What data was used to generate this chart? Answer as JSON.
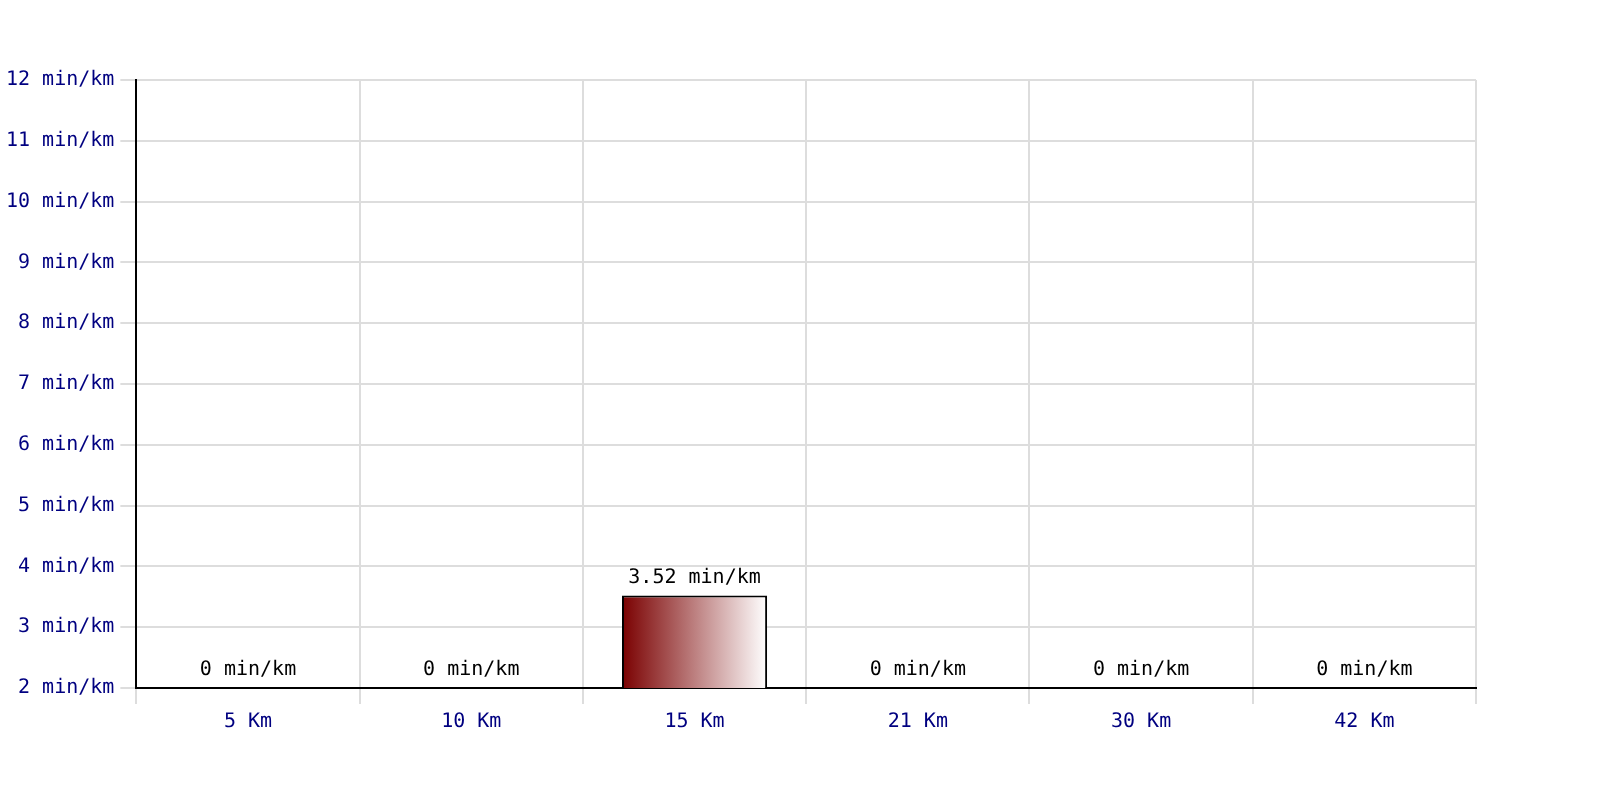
{
  "chart_data": {
    "type": "bar",
    "categories": [
      "5 Km",
      "10 Km",
      "15 Km",
      "21 Km",
      "30 Km",
      "42 Km"
    ],
    "values": [
      null,
      null,
      3.52,
      null,
      null,
      null
    ],
    "value_labels": [
      "0 min/km",
      "0 min/km",
      "3.52 min/km",
      "0 min/km",
      "0 min/km",
      "0 min/km"
    ],
    "color": "#7a0000",
    "ylim": [
      2,
      12
    ],
    "yticks": [
      {
        "value": 2,
        "label": "2 min/km"
      },
      {
        "value": 3,
        "label": "3 min/km"
      },
      {
        "value": 4,
        "label": "4 min/km"
      },
      {
        "value": 5,
        "label": "5 min/km"
      },
      {
        "value": 6,
        "label": "6 min/km"
      },
      {
        "value": 7,
        "label": "7 min/km"
      },
      {
        "value": 8,
        "label": "8 min/km"
      },
      {
        "value": 9,
        "label": "9 min/km"
      },
      {
        "value": 10,
        "label": "10 min/km"
      },
      {
        "value": 11,
        "label": "11 min/km"
      },
      {
        "value": 12,
        "label": "12 min/km"
      }
    ],
    "grid": true,
    "legend": false
  }
}
